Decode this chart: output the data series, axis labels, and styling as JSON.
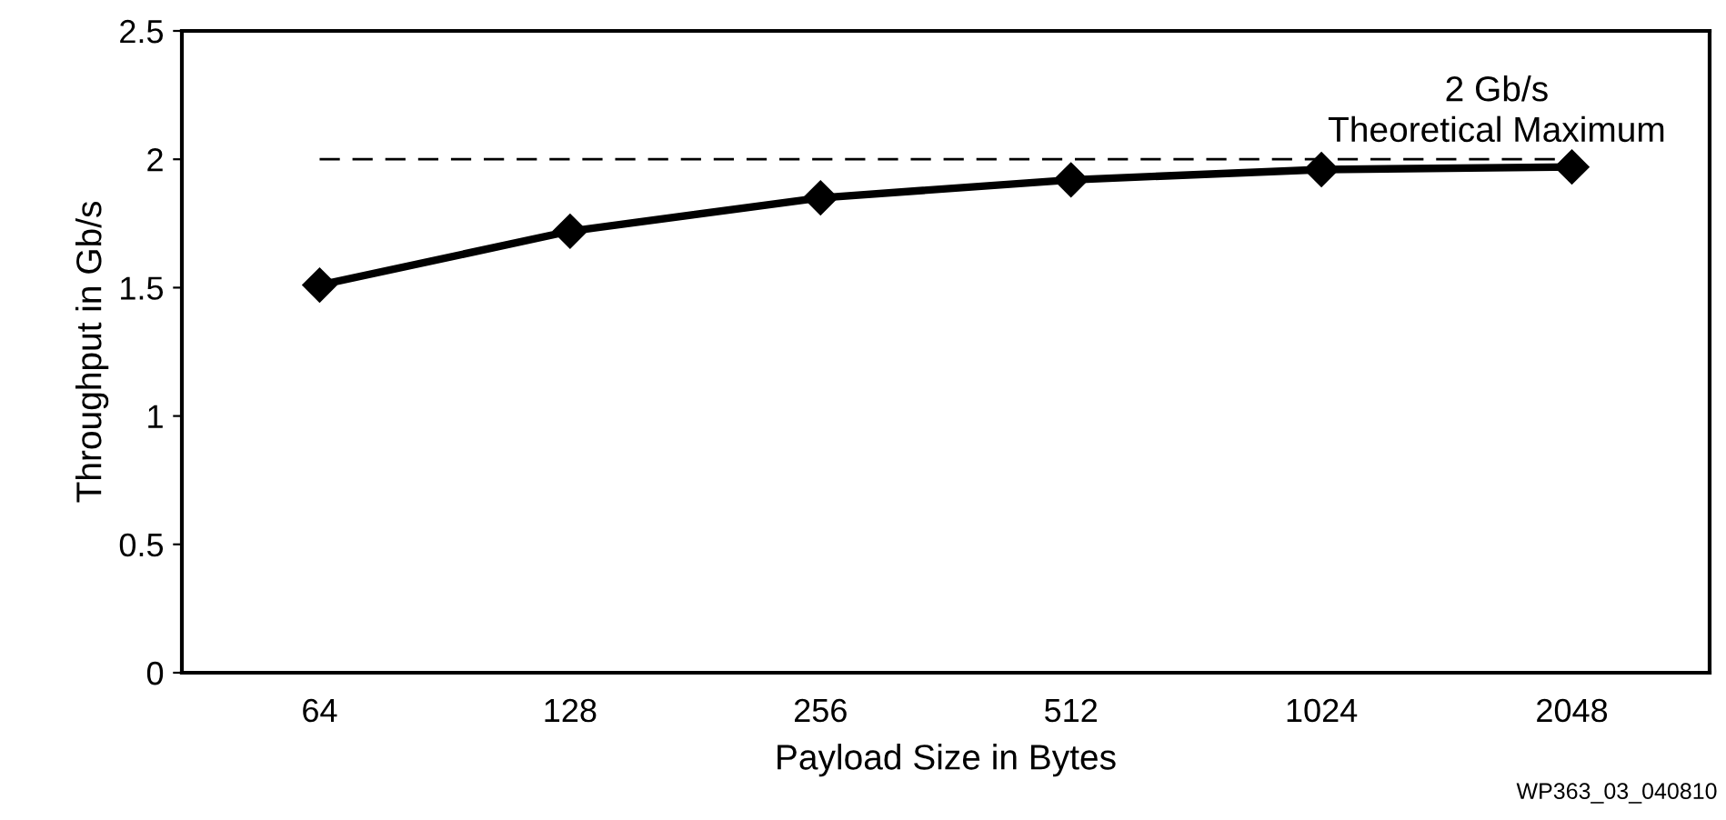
{
  "chart_data": {
    "type": "line",
    "xlabel": "Payload Size in Bytes",
    "ylabel": "Throughput in Gb/s",
    "categories": [
      "64",
      "128",
      "256",
      "512",
      "1024",
      "2048"
    ],
    "series": [
      {
        "color": "#000000",
        "values": [
          1.51,
          1.72,
          1.85,
          1.92,
          1.96,
          1.97
        ]
      }
    ],
    "ylim": [
      0,
      2.5
    ],
    "yticks": [
      0,
      0.5,
      1,
      1.5,
      2,
      2.5
    ],
    "marker": "diamond",
    "line_style": "solid",
    "grid": false,
    "legend": false,
    "ref_lines": [
      {
        "axis": "y",
        "value": 2,
        "label": "2 Gb/s\nTheoretical Maximum",
        "color": "#000000",
        "line_style": "dashed"
      }
    ],
    "annotations": [
      "WP363_03_040810"
    ]
  }
}
